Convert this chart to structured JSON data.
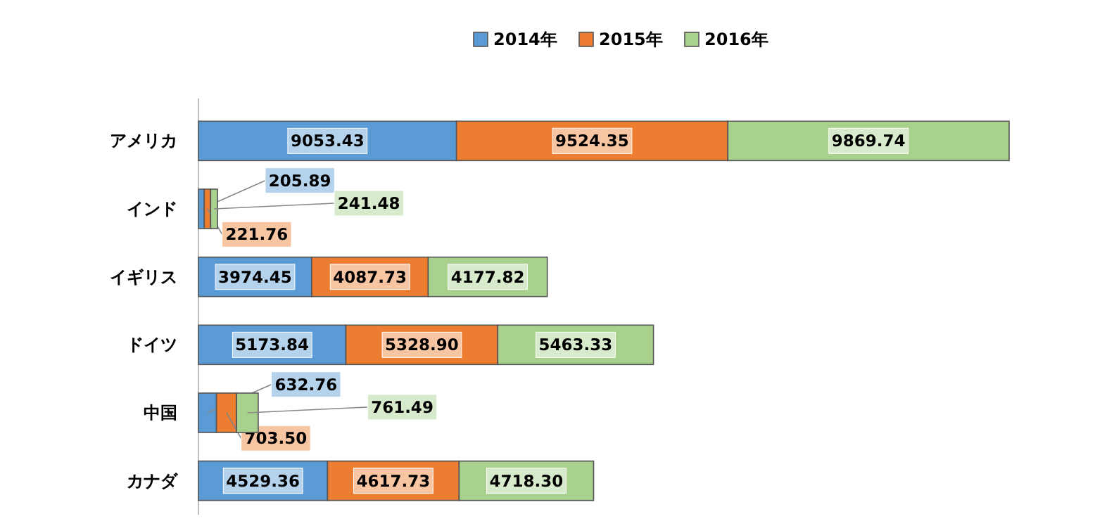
{
  "chart_data": {
    "type": "bar",
    "orientation": "horizontal",
    "stacked": true,
    "legend": "top",
    "categories": [
      "アメリカ",
      "インド",
      "イギリス",
      "ドイツ",
      "中国",
      "カナダ"
    ],
    "series": [
      {
        "name": "2014年",
        "color": "#5b9bd5",
        "values": [
          9053.43,
          205.89,
          3974.45,
          5173.84,
          632.76,
          4529.36
        ],
        "value_labels": [
          "9053.43",
          "205.89",
          "3974.45",
          "5173.84",
          "632.76",
          "4529.36"
        ]
      },
      {
        "name": "2015年",
        "color": "#ed7d31",
        "values": [
          9524.35,
          221.76,
          4087.73,
          5328.9,
          703.5,
          4617.73
        ],
        "value_labels": [
          "9524.35",
          "221.76",
          "4087.73",
          "5328.90",
          "703.50",
          "4617.73"
        ]
      },
      {
        "name": "2016年",
        "color": "#a9d18e",
        "values": [
          9869.74,
          241.48,
          4177.82,
          5463.33,
          761.49,
          4718.3
        ],
        "value_labels": [
          "9869.74",
          "241.48",
          "4177.82",
          "5463.33",
          "761.49",
          "4718.30"
        ]
      }
    ]
  }
}
